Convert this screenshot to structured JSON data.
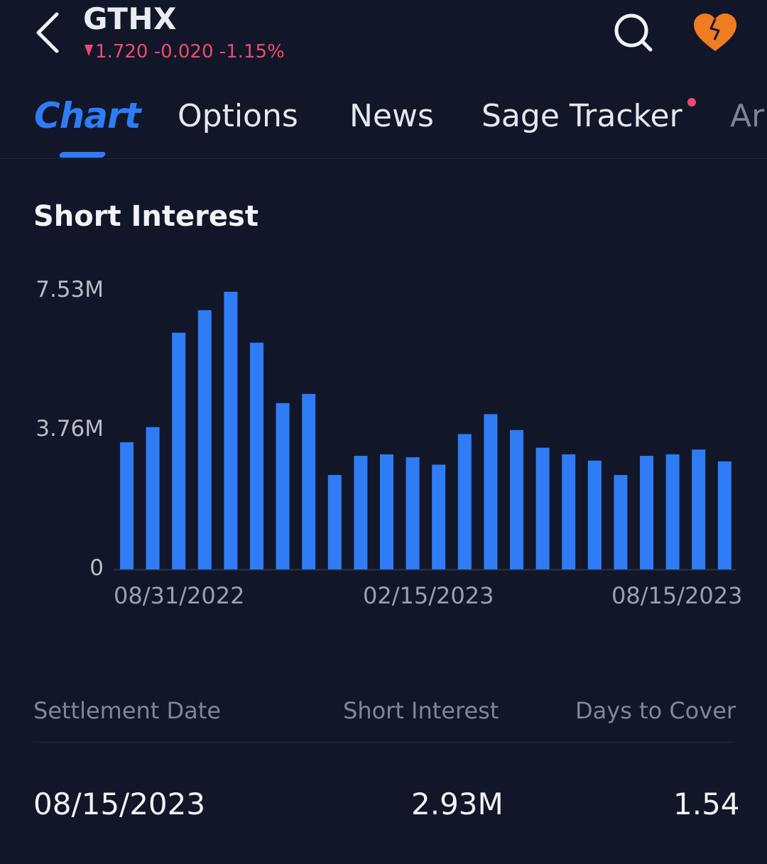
{
  "header": {
    "ticker": "GTHX",
    "price": "1.720",
    "change": "-0.020",
    "change_pct": "-1.15%",
    "down_color": "#f0496f"
  },
  "icons": {
    "back": "chevron-left-icon",
    "search": "search-icon",
    "favorite": "heart-icon"
  },
  "accent_color": "#2f7cf6",
  "favorite_color": "#f07c22",
  "tabs": [
    {
      "label": "Chart",
      "active": true
    },
    {
      "label": "Options",
      "active": false
    },
    {
      "label": "News",
      "active": false
    },
    {
      "label": "Sage Tracker",
      "active": false,
      "has_dot": true
    },
    {
      "label": "Ar",
      "active": false
    }
  ],
  "section": {
    "title": "Short Interest"
  },
  "chart_data": {
    "type": "bar",
    "title": "Short Interest",
    "yticks": [
      "7.53M",
      "3.76M",
      "0"
    ],
    "ylim": [
      0,
      7.53
    ],
    "xticks": [
      "08/31/2022",
      "02/15/2023",
      "08/15/2023"
    ],
    "grid": false,
    "series": [
      {
        "values": [
          3.45,
          3.86,
          6.42,
          7.03,
          7.53,
          6.15,
          4.51,
          4.76,
          2.56,
          3.08,
          3.12,
          3.04,
          2.84,
          3.67,
          4.21,
          3.78,
          3.3,
          3.12,
          2.95,
          2.56,
          3.08,
          3.12,
          3.25,
          2.93
        ]
      }
    ],
    "color": "#2f7cf6"
  },
  "table": {
    "headers": [
      "Settlement Date",
      "Short Interest",
      "Days to Cover"
    ],
    "rows": [
      [
        "08/15/2023",
        "2.93M",
        "1.54"
      ]
    ]
  }
}
